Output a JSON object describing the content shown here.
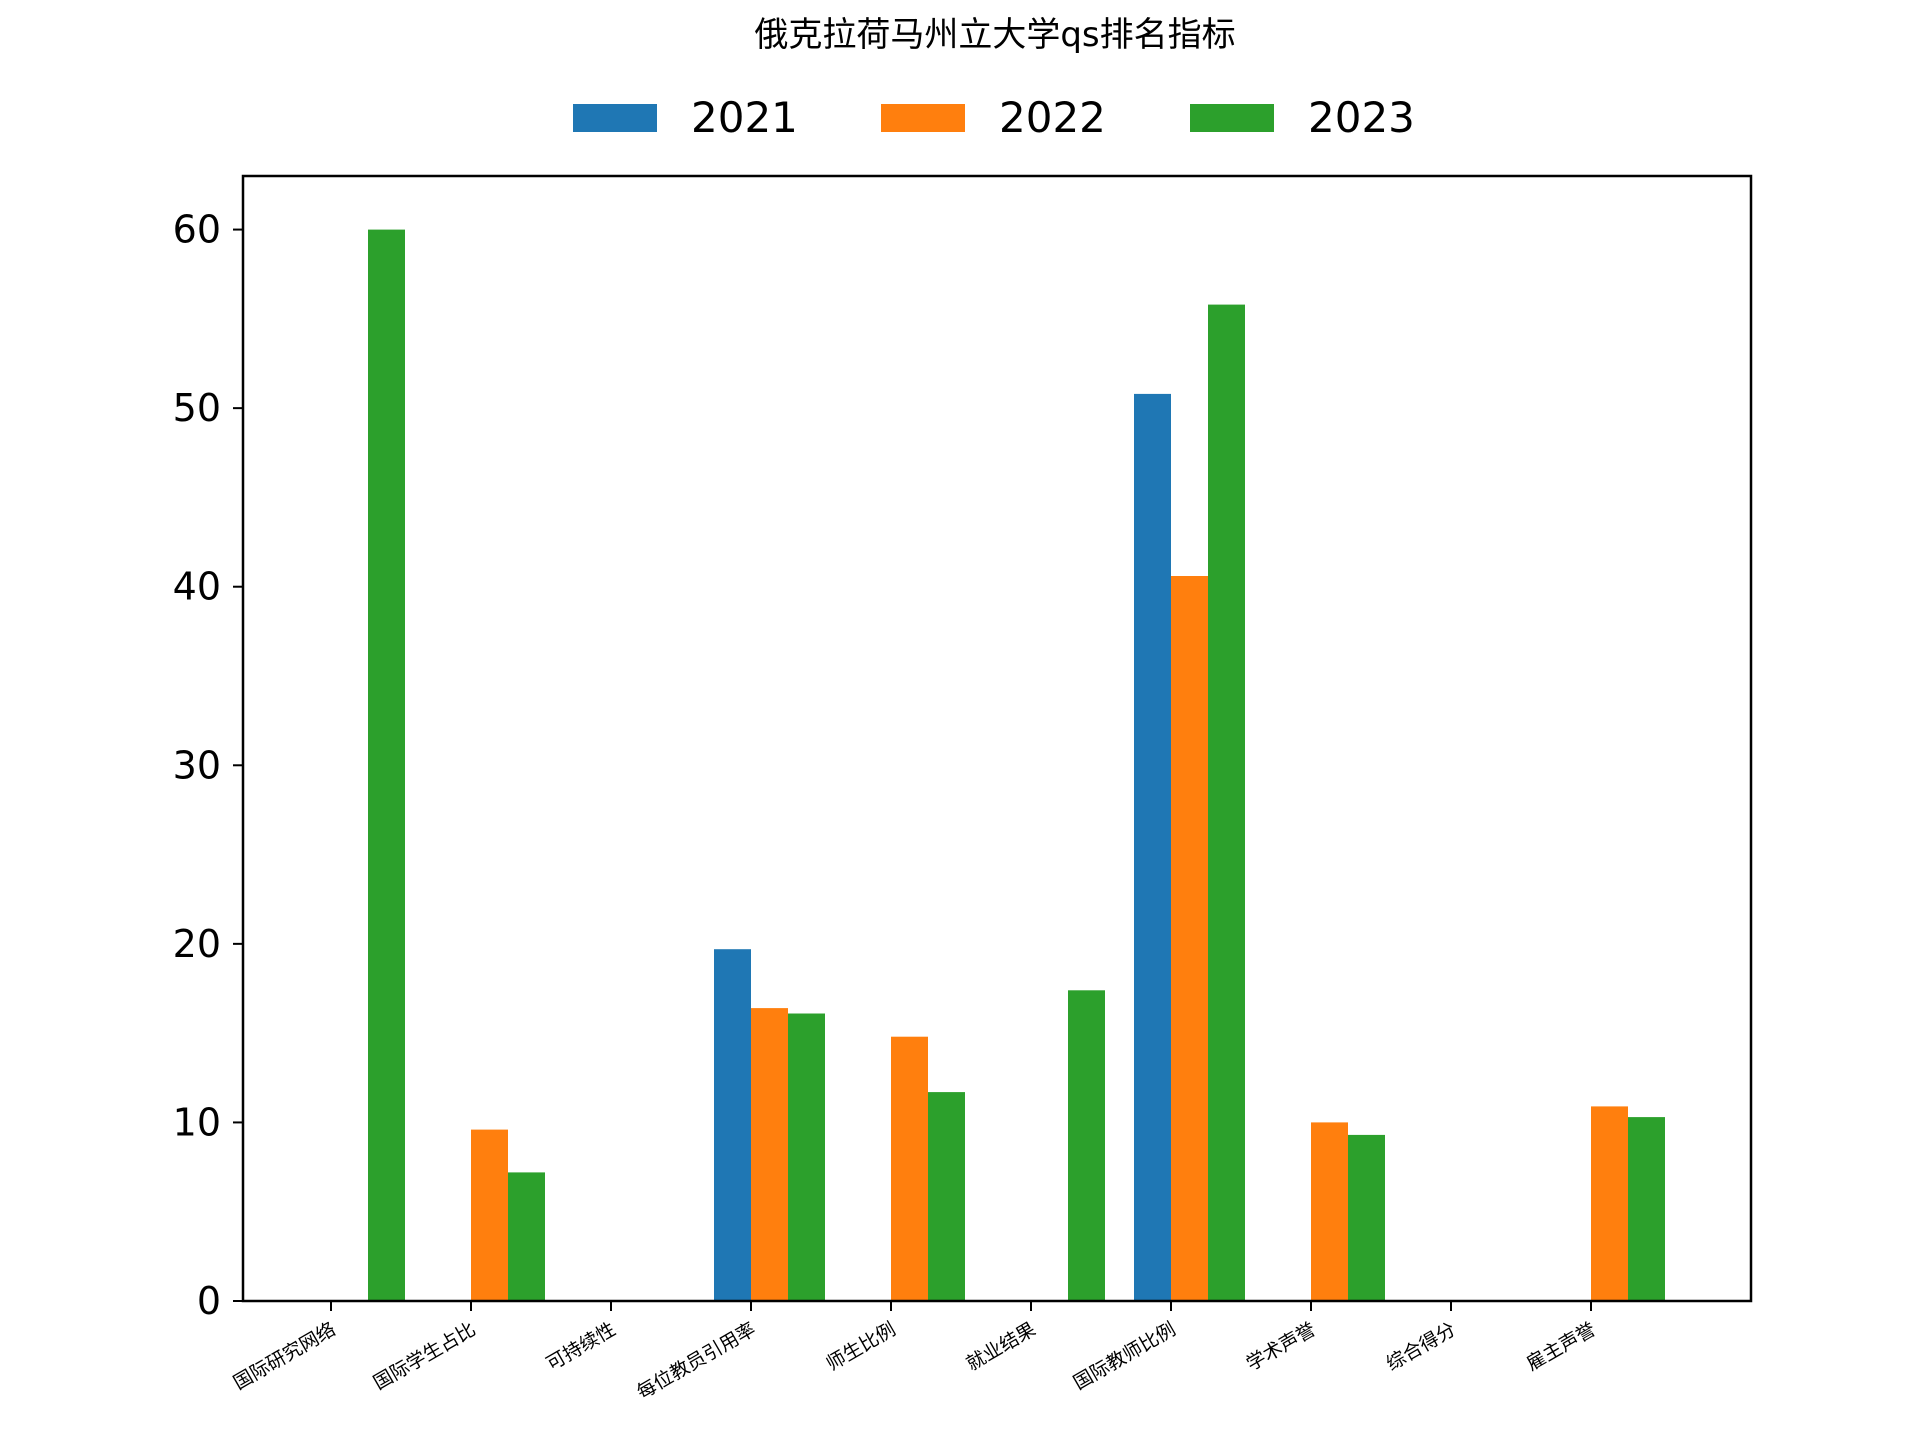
{
  "chart_data": {
    "type": "bar",
    "title": "俄克拉荷马州立大学qs排名指标",
    "xlabel": "",
    "ylabel": "",
    "categories": [
      "国际研究网络",
      "国际学生占比",
      "可持续性",
      "每位教员引用率",
      "师生比例",
      "就业结果",
      "国际教师比例",
      "学术声誉",
      "综合得分",
      "雇主声誉"
    ],
    "series": [
      {
        "name": "2021",
        "color": "#1f77b4",
        "values": [
          0,
          0,
          0,
          19.7,
          0,
          0,
          50.8,
          0,
          0,
          0
        ]
      },
      {
        "name": "2022",
        "color": "#ff7f0e",
        "values": [
          0,
          9.6,
          0,
          16.4,
          14.8,
          0,
          40.6,
          10.0,
          0,
          10.9
        ]
      },
      {
        "name": "2023",
        "color": "#2ca02c",
        "values": [
          60.0,
          7.2,
          0,
          16.1,
          11.7,
          17.4,
          55.8,
          9.3,
          0,
          10.3
        ]
      }
    ],
    "ylim": [
      0,
      63
    ],
    "yticks": [
      0,
      10,
      20,
      30,
      40,
      50,
      60
    ],
    "grid": false,
    "legend": "top-center"
  }
}
